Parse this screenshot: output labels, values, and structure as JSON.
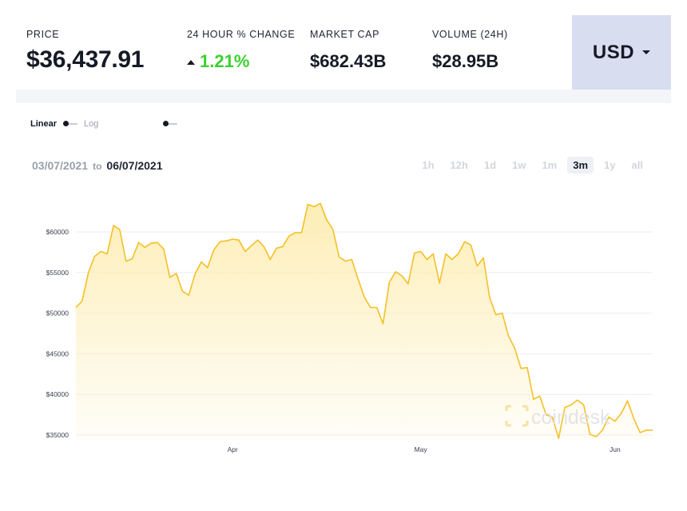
{
  "stats": {
    "price_label": "PRICE",
    "price_value": "$36,437.91",
    "change_label": "24 HOUR % CHANGE",
    "change_value": "1.21%",
    "market_cap_label": "MARKET CAP",
    "market_cap_value": "$682.43B",
    "volume_label": "VOLUME (24H)",
    "volume_value": "$28.95B"
  },
  "currency": {
    "label": "USD"
  },
  "scale": {
    "linear_label": "Linear",
    "log_label": "Log"
  },
  "date_range": {
    "start": "03/07/2021",
    "to_word": "to",
    "end": "06/07/2021"
  },
  "ranges": [
    {
      "label": "1h",
      "active": false
    },
    {
      "label": "12h",
      "active": false
    },
    {
      "label": "1d",
      "active": false
    },
    {
      "label": "1w",
      "active": false
    },
    {
      "label": "1m",
      "active": false
    },
    {
      "label": "3m",
      "active": true
    },
    {
      "label": "1y",
      "active": false
    },
    {
      "label": "all",
      "active": false
    }
  ],
  "watermark": "coindesk",
  "colors": {
    "line": "#f5c026",
    "fill": "#fdecae",
    "positive": "#3bd12f",
    "currency_bg": "#d8ddf0"
  },
  "chart_data": {
    "type": "area",
    "x": [
      "2021-03-07",
      "2021-03-08",
      "2021-03-09",
      "2021-03-10",
      "2021-03-11",
      "2021-03-12",
      "2021-03-13",
      "2021-03-14",
      "2021-03-15",
      "2021-03-16",
      "2021-03-17",
      "2021-03-18",
      "2021-03-19",
      "2021-03-20",
      "2021-03-21",
      "2021-03-22",
      "2021-03-23",
      "2021-03-24",
      "2021-03-25",
      "2021-03-26",
      "2021-03-27",
      "2021-03-28",
      "2021-03-29",
      "2021-03-30",
      "2021-03-31",
      "2021-04-01",
      "2021-04-02",
      "2021-04-03",
      "2021-04-04",
      "2021-04-05",
      "2021-04-06",
      "2021-04-07",
      "2021-04-08",
      "2021-04-09",
      "2021-04-10",
      "2021-04-11",
      "2021-04-12",
      "2021-04-13",
      "2021-04-14",
      "2021-04-15",
      "2021-04-16",
      "2021-04-17",
      "2021-04-18",
      "2021-04-19",
      "2021-04-20",
      "2021-04-21",
      "2021-04-22",
      "2021-04-23",
      "2021-04-24",
      "2021-04-25",
      "2021-04-26",
      "2021-04-27",
      "2021-04-28",
      "2021-04-29",
      "2021-04-30",
      "2021-05-01",
      "2021-05-02",
      "2021-05-03",
      "2021-05-04",
      "2021-05-05",
      "2021-05-06",
      "2021-05-07",
      "2021-05-08",
      "2021-05-09",
      "2021-05-10",
      "2021-05-11",
      "2021-05-12",
      "2021-05-13",
      "2021-05-14",
      "2021-05-15",
      "2021-05-16",
      "2021-05-17",
      "2021-05-18",
      "2021-05-19",
      "2021-05-20",
      "2021-05-21",
      "2021-05-22",
      "2021-05-23",
      "2021-05-24",
      "2021-05-25",
      "2021-05-26",
      "2021-05-27",
      "2021-05-28",
      "2021-05-29",
      "2021-05-30",
      "2021-05-31",
      "2021-06-01",
      "2021-06-02",
      "2021-06-03",
      "2021-06-04",
      "2021-06-05",
      "2021-06-06",
      "2021-06-07"
    ],
    "values": [
      50700,
      51500,
      55000,
      57000,
      57600,
      57300,
      60800,
      60300,
      56400,
      56700,
      58700,
      58100,
      58600,
      58700,
      57900,
      54400,
      54900,
      52700,
      52200,
      54800,
      56300,
      55600,
      57800,
      58800,
      58900,
      59100,
      59000,
      57600,
      58300,
      59000,
      58200,
      56600,
      58000,
      58200,
      59500,
      59900,
      59900,
      63400,
      63100,
      63500,
      61500,
      60300,
      56900,
      56400,
      56600,
      54200,
      52000,
      50700,
      50700,
      48700,
      53800,
      55100,
      54600,
      53600,
      57400,
      57600,
      56600,
      57300,
      53700,
      57300,
      56600,
      57300,
      58800,
      58400,
      55800,
      56800,
      51900,
      49800,
      50000,
      47200,
      45700,
      43200,
      43300,
      39400,
      39800,
      37500,
      37200,
      34600,
      38400,
      38700,
      39300,
      38700,
      35100,
      34800,
      35600,
      37200,
      36700,
      37700,
      39200,
      37000,
      35300,
      35600,
      35600
    ],
    "ylim": [
      34600,
      63500
    ],
    "yticks": [
      35000,
      40000,
      45000,
      50000,
      55000,
      60000
    ],
    "ytick_labels": [
      "$35000",
      "$40000",
      "$45000",
      "$50000",
      "$55000",
      "$60000"
    ],
    "xticks": [
      {
        "date": "2021-04-01",
        "label": "Apr"
      },
      {
        "date": "2021-05-01",
        "label": "May"
      },
      {
        "date": "2021-06-01",
        "label": "Jun"
      }
    ],
    "grid": true,
    "legend": "none"
  }
}
